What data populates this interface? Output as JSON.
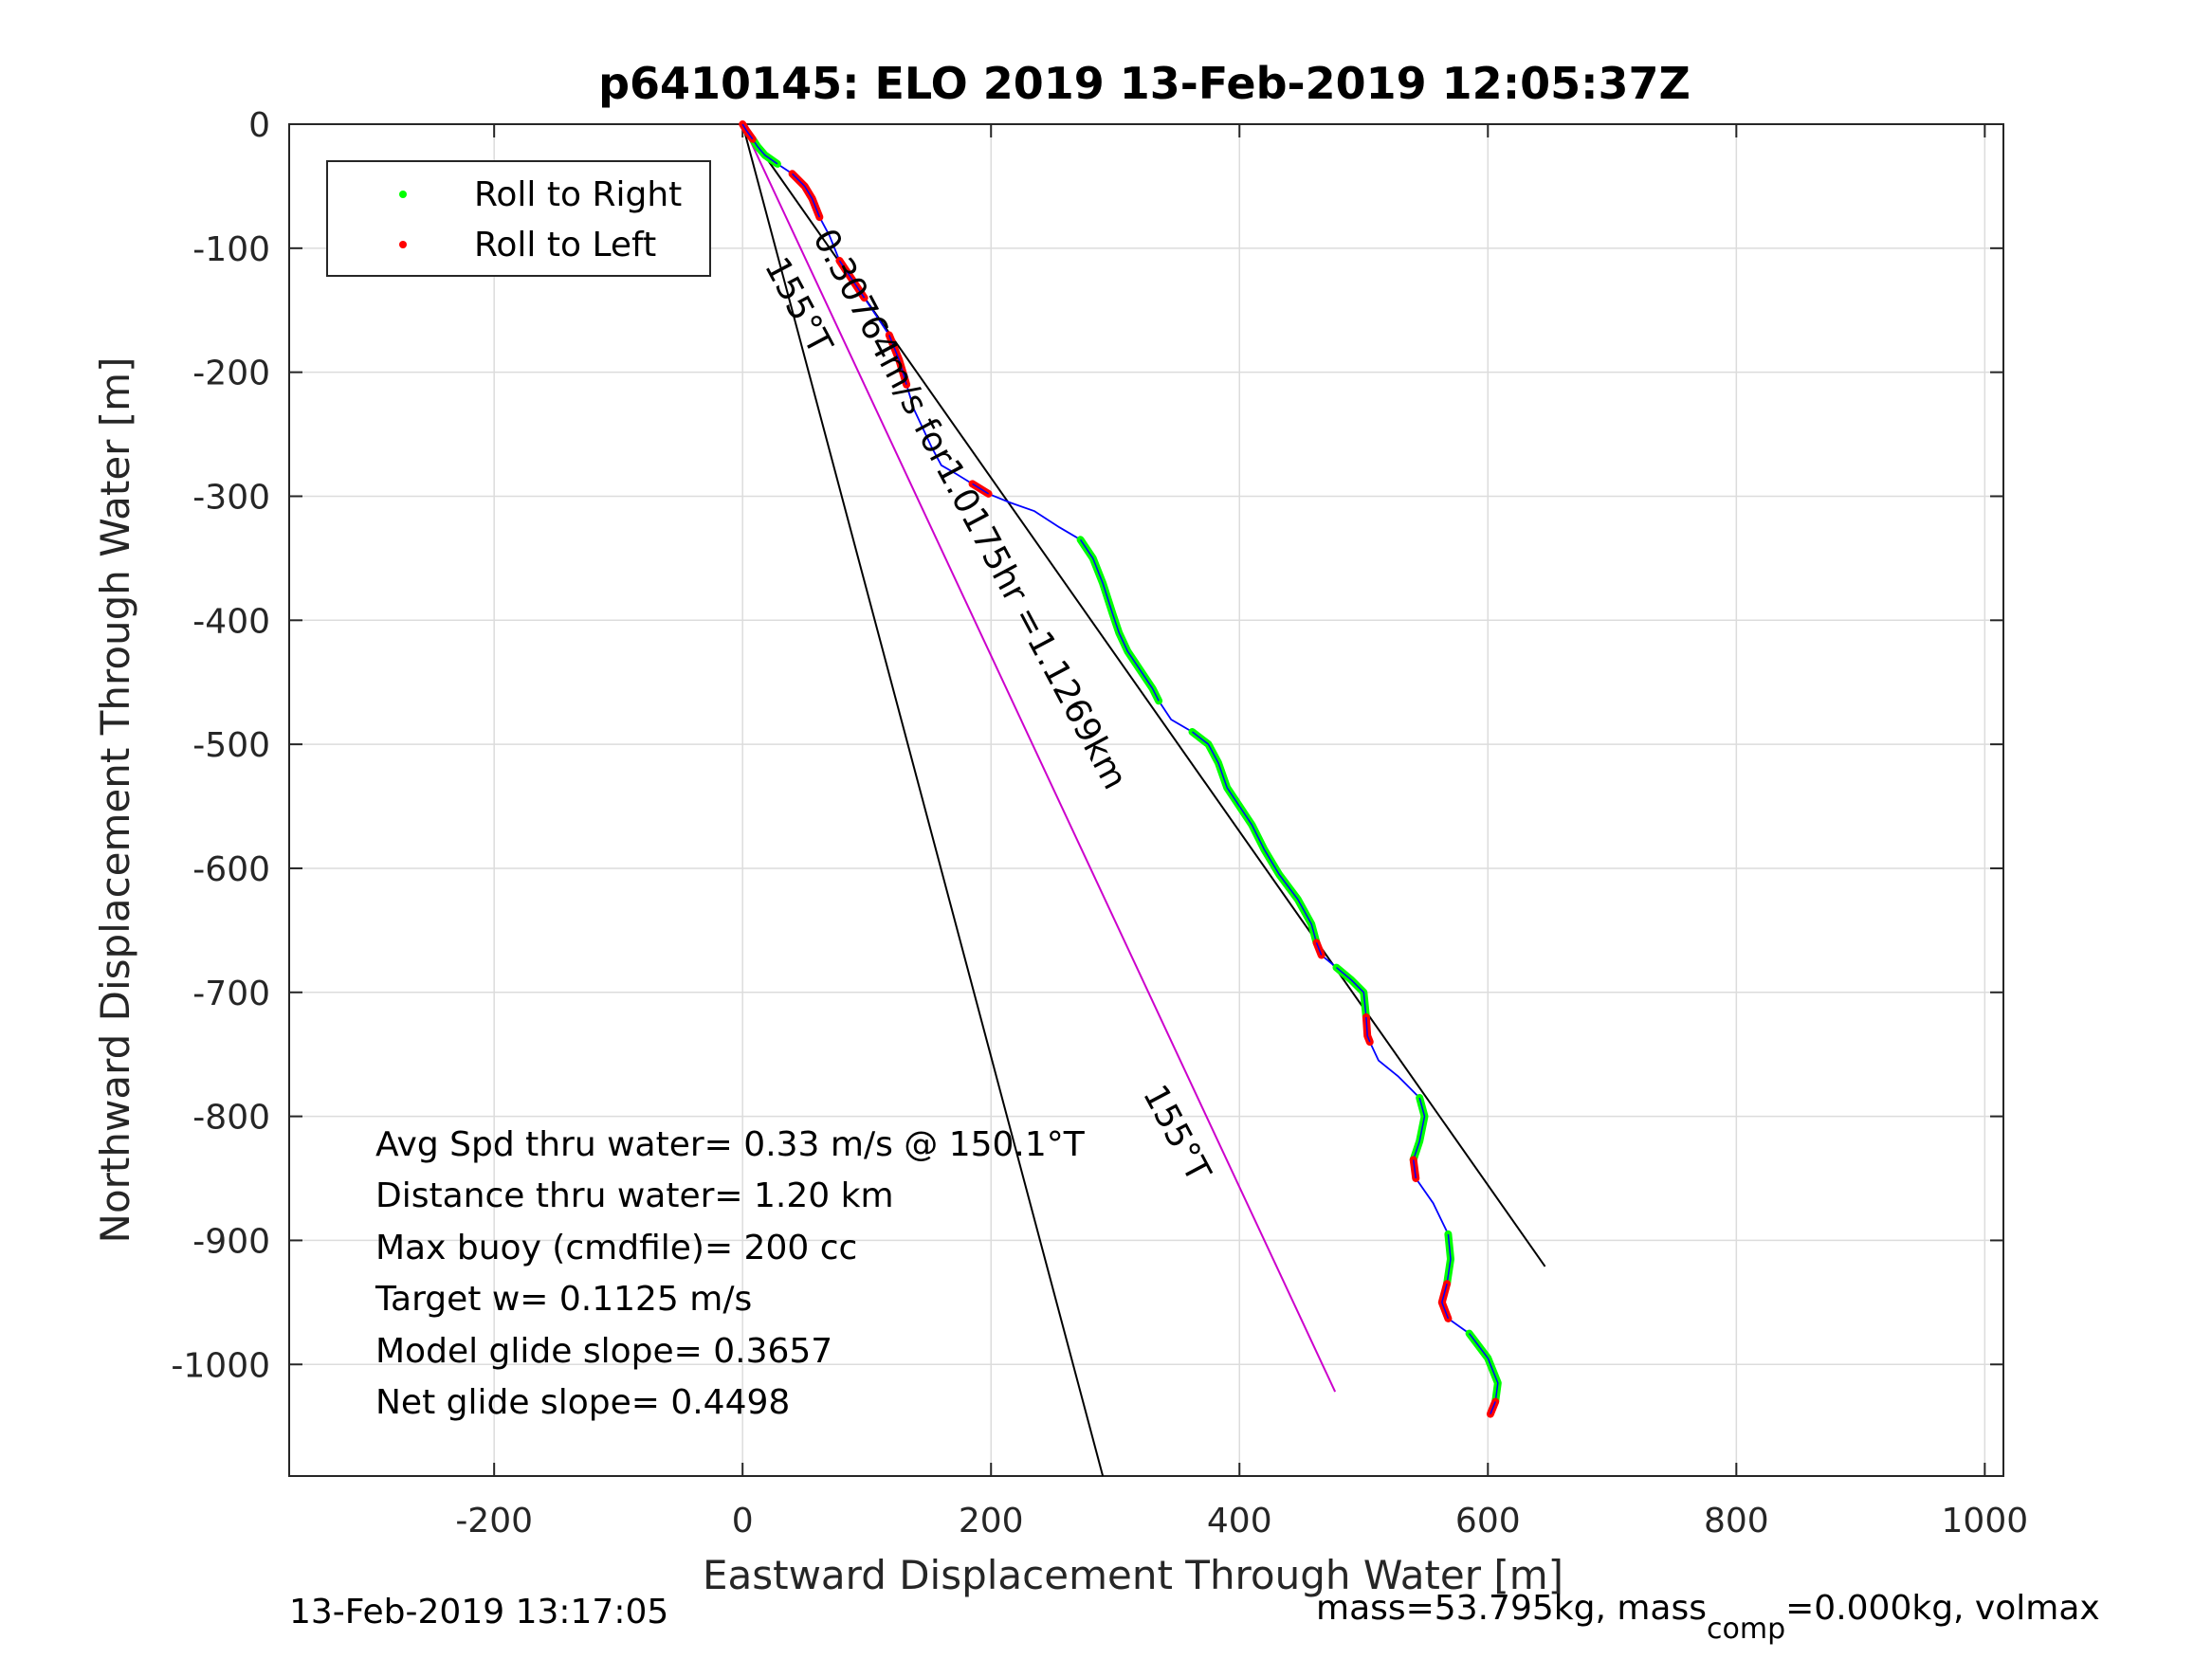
{
  "chart_data": {
    "type": "line",
    "title": "p6410145: ELO 2019 13-Feb-2019 12:05:37Z",
    "xlabel": "Eastward Displacement Through Water [m]",
    "ylabel": "Northward Displacement Through Water [m]",
    "xlim": [
      -365,
      1015
    ],
    "ylim": [
      -1090,
      0
    ],
    "xticks": [
      -200,
      0,
      200,
      400,
      600,
      800,
      1000
    ],
    "xtick_labels": [
      "-200",
      "0",
      "200",
      "400",
      "600",
      "800",
      "1000"
    ],
    "yticks": [
      0,
      -100,
      -200,
      -300,
      -400,
      -500,
      -600,
      -700,
      -800,
      -900,
      -1000
    ],
    "ytick_labels": [
      "0",
      "-100",
      "-200",
      "-300",
      "-400",
      "-500",
      "-600",
      "-700",
      "-800",
      "-900",
      "-1000"
    ],
    "grid": true,
    "legend_position": "top-left",
    "legend": [
      {
        "label": "Roll to Right",
        "color": "#00ff00"
      },
      {
        "label": "Roll to Left",
        "color": "#ff0000"
      }
    ],
    "colors": {
      "track": "#0000ff",
      "roll_right": "#00ff00",
      "roll_left": "#ff0000",
      "heading_line": "#cc00cc",
      "reference_lines": "#000000"
    },
    "track": {
      "x": [
        0,
        3,
        8,
        12,
        18,
        28,
        40,
        50,
        56,
        62,
        70,
        78,
        88,
        98,
        108,
        118,
        126,
        132,
        138,
        145,
        152,
        160,
        172,
        185,
        198,
        215,
        235,
        255,
        272,
        282,
        290,
        298,
        303,
        310,
        320,
        330,
        335,
        345,
        362,
        375,
        383,
        390,
        400,
        410,
        420,
        432,
        447,
        458,
        462,
        466,
        478,
        490,
        500,
        502,
        503,
        505,
        512,
        528,
        545,
        549,
        545,
        540,
        542,
        556,
        568,
        570,
        567,
        563,
        568,
        585,
        600,
        608,
        606,
        602
      ],
      "y": [
        0,
        -5,
        -12,
        -18,
        -25,
        -32,
        -40,
        -50,
        -60,
        -75,
        -90,
        -110,
        -125,
        -140,
        -155,
        -170,
        -190,
        -210,
        -230,
        -245,
        -260,
        -275,
        -282,
        -290,
        -298,
        -305,
        -312,
        -325,
        -335,
        -350,
        -370,
        -395,
        -410,
        -425,
        -440,
        -455,
        -465,
        -480,
        -490,
        -500,
        -515,
        -535,
        -550,
        -565,
        -585,
        -605,
        -625,
        -645,
        -660,
        -670,
        -680,
        -690,
        -700,
        -720,
        -735,
        -740,
        -755,
        -768,
        -785,
        -800,
        -820,
        -835,
        -850,
        -870,
        -895,
        -915,
        -935,
        -950,
        -963,
        -975,
        -995,
        -1015,
        -1030,
        -1040
      ]
    },
    "roll_right": [
      {
        "x": [
          8,
          12,
          18,
          28
        ],
        "y": [
          -12,
          -18,
          -25,
          -32
        ]
      },
      {
        "x": [
          272,
          282,
          290,
          298,
          303,
          310,
          320,
          330,
          335
        ],
        "y": [
          -335,
          -350,
          -370,
          -395,
          -410,
          -425,
          -440,
          -455,
          -465
        ]
      },
      {
        "x": [
          362,
          375,
          383,
          390,
          400,
          410,
          420,
          432,
          447,
          458,
          462
        ],
        "y": [
          -490,
          -500,
          -515,
          -535,
          -550,
          -565,
          -585,
          -605,
          -625,
          -645,
          -660
        ]
      },
      {
        "x": [
          478,
          490,
          500,
          502
        ],
        "y": [
          -680,
          -690,
          -700,
          -720
        ]
      },
      {
        "x": [
          545,
          549,
          545,
          540
        ],
        "y": [
          -785,
          -800,
          -820,
          -835
        ]
      },
      {
        "x": [
          568,
          570,
          567
        ],
        "y": [
          -895,
          -915,
          -935
        ]
      },
      {
        "x": [
          585,
          600,
          608,
          606
        ],
        "y": [
          -975,
          -995,
          -1015,
          -1030
        ]
      }
    ],
    "roll_left": [
      {
        "x": [
          0,
          3,
          8
        ],
        "y": [
          0,
          -5,
          -12
        ]
      },
      {
        "x": [
          40,
          50,
          56,
          62
        ],
        "y": [
          -40,
          -50,
          -60,
          -75
        ]
      },
      {
        "x": [
          78,
          88,
          98
        ],
        "y": [
          -110,
          -125,
          -140
        ]
      },
      {
        "x": [
          118,
          126,
          132
        ],
        "y": [
          -170,
          -190,
          -210
        ]
      },
      {
        "x": [
          185,
          198
        ],
        "y": [
          -290,
          -298
        ]
      },
      {
        "x": [
          462,
          466
        ],
        "y": [
          -660,
          -670
        ]
      },
      {
        "x": [
          502,
          503,
          505
        ],
        "y": [
          -720,
          -735,
          -740
        ]
      },
      {
        "x": [
          540,
          542
        ],
        "y": [
          -835,
          -850
        ]
      },
      {
        "x": [
          567,
          563,
          568
        ],
        "y": [
          -935,
          -950,
          -963
        ]
      },
      {
        "x": [
          606,
          602
        ],
        "y": [
          -1030,
          -1040
        ]
      }
    ],
    "reference_lines": [
      {
        "x": [
          0,
          290
        ],
        "y": [
          0,
          -1090
        ],
        "label": "155°T"
      },
      {
        "x": [
          0,
          646
        ],
        "y": [
          0,
          -921
        ]
      },
      {
        "x": [
          0,
          477
        ],
        "y": [
          0,
          -1022
        ],
        "label": "155°T",
        "color": "#cc00cc"
      }
    ],
    "line_annotation": "0.30764m/s for1.0175hr =1.1269km",
    "stats": [
      "Avg Spd thru water=  0.33 m/s @ 150.1°T",
      "Distance thru water=  1.20 km",
      "Max buoy (cmdfile)= 200 cc",
      "Target w= 0.1125 m/s",
      "Model glide slope= 0.3657",
      "Net glide slope= 0.4498"
    ]
  },
  "footer": {
    "timestamp": "13-Feb-2019 13:17:05",
    "mass_text_1": "mass=53.795kg, mass",
    "mass_subscript": "comp",
    "mass_text_2": "=0.000kg, volmax"
  }
}
